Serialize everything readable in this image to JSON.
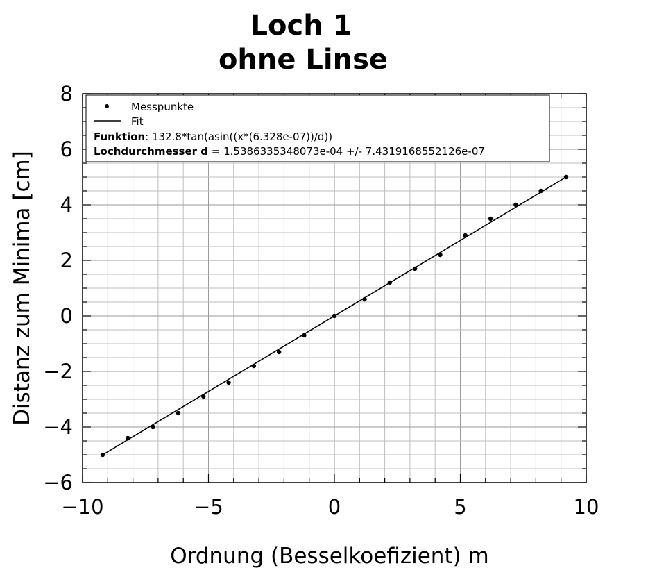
{
  "chart_data": {
    "type": "scatter",
    "title_line1": "Loch 1",
    "title_line2": "ohne Linse",
    "xlabel": "Ordnung (Besselkoefizient) m",
    "ylabel": "Distanz zum Minima [cm]",
    "xlim": [
      -10,
      10
    ],
    "ylim": [
      -6,
      8
    ],
    "x_ticks": [
      -10,
      -5,
      0,
      5,
      10
    ],
    "y_ticks": [
      -6,
      -4,
      -2,
      0,
      2,
      4,
      6,
      8
    ],
    "x_tick_labels": [
      "−10",
      "−5",
      "0",
      "5",
      "10"
    ],
    "y_tick_labels": [
      "−6",
      "−4",
      "−2",
      "0",
      "2",
      "4",
      "6",
      "8"
    ],
    "grid": true,
    "legend_position": "top-left",
    "series": [
      {
        "name": "Messpunkte",
        "kind": "points",
        "color": "#000000",
        "x": [
          -9.2,
          -8.2,
          -7.2,
          -6.2,
          -5.2,
          -4.2,
          -3.2,
          -2.2,
          -1.2,
          0,
          1.2,
          2.2,
          3.2,
          4.2,
          5.2,
          6.2,
          7.2,
          8.2,
          9.2
        ],
        "y": [
          -5.0,
          -4.4,
          -4.0,
          -3.5,
          -2.9,
          -2.4,
          -1.8,
          -1.3,
          -0.7,
          0.0,
          0.6,
          1.2,
          1.7,
          2.2,
          2.9,
          3.5,
          4.0,
          4.5,
          5.0
        ]
      },
      {
        "name": "Fit",
        "kind": "line",
        "color": "#000000",
        "x": [
          -9.2,
          9.2
        ],
        "y": [
          -5.0,
          5.0
        ]
      }
    ],
    "legend_extra": [
      {
        "label": "Funktion",
        "value": ": 132.8*tan(asin((x*(6.328e-07))/d))"
      },
      {
        "label": "Lochdurchmesser d",
        "value": " = 1.5386335348073e-04 +/- 7.4319168552126e-07"
      }
    ]
  }
}
